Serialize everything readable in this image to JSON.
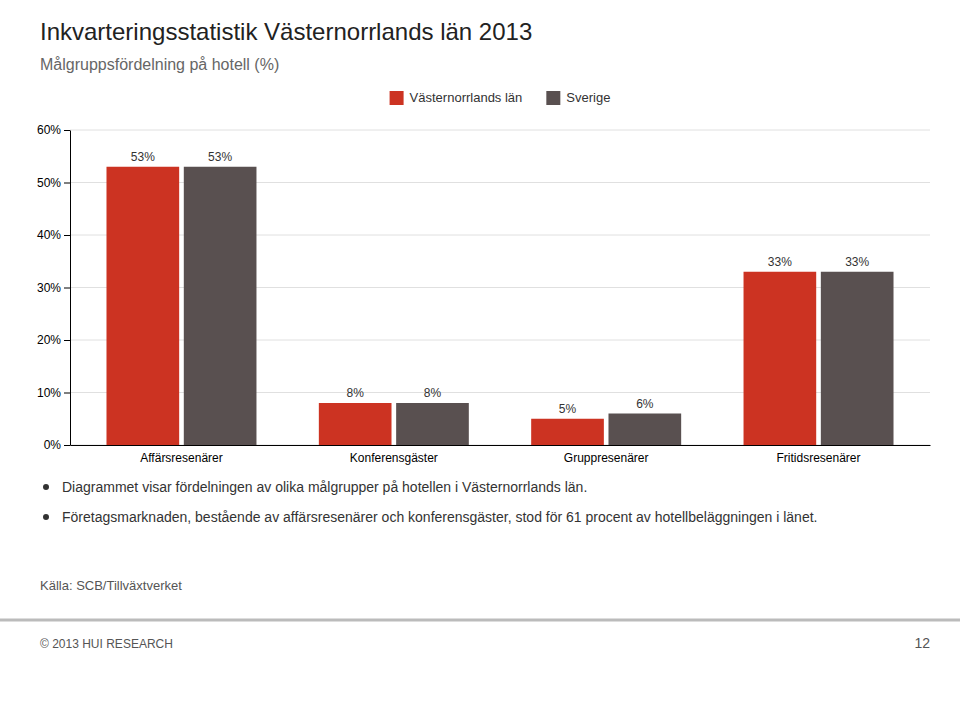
{
  "chart_data": {
    "type": "bar",
    "title": "Inkvarteringsstatistik Västernorrlands län 2013",
    "subtitle": "Målgruppsfördelning på hotell (%)",
    "categories": [
      "Affärsresenärer",
      "Konferensgäster",
      "Gruppresenärer",
      "Fritidsresenärer"
    ],
    "series": [
      {
        "name": "Västernorrlands län",
        "color": "#CC3322",
        "values": [
          53,
          8,
          5,
          33
        ],
        "value_labels": [
          "53%",
          "8%",
          "5%",
          "33%"
        ]
      },
      {
        "name": "Sverige",
        "color": "#595050",
        "values": [
          53,
          8,
          6,
          33
        ],
        "value_labels": [
          "53%",
          "8%",
          "6%",
          "33%"
        ]
      }
    ],
    "ylim": [
      0,
      60
    ],
    "yticks": [
      {
        "value": 0,
        "label": "0%"
      },
      {
        "value": 10,
        "label": "10%"
      },
      {
        "value": 20,
        "label": "20%"
      },
      {
        "value": 30,
        "label": "30%"
      },
      {
        "value": 40,
        "label": "40%"
      },
      {
        "value": 50,
        "label": "50%"
      },
      {
        "value": 60,
        "label": "60%"
      }
    ],
    "grid": true,
    "legend": "top",
    "data_labels": true,
    "annotations": [
      "Diagrammet visar fördelningen av olika målgrupper på hotellen i Västernorrlands län.",
      "Företagsmarknaden, bestående av affärsresenärer och konferensgäster, stod för 61 procent av hotellbeläggningen i länet.",
      "Källa: SCB/Tillväxtverket",
      "© 2013 HUI RESEARCH",
      "12"
    ]
  }
}
